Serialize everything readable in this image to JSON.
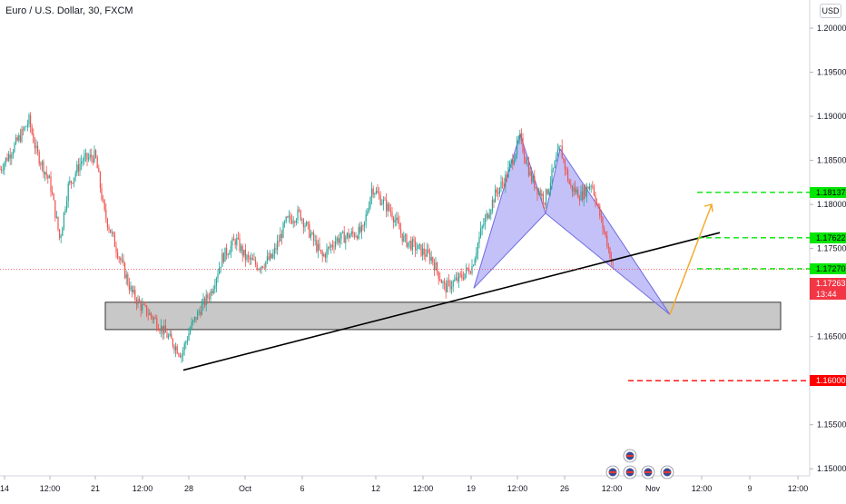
{
  "header": {
    "title": "Euro / U.S. Dollar, 30, FXCM",
    "currency_badge": "USD"
  },
  "chart_data": {
    "type": "candlestick",
    "title": "Euro / U.S. Dollar, 30, FXCM",
    "ylim": [
      1.148,
      1.204
    ],
    "y_ticks": [
      {
        "v": 1.2,
        "label": "1.20000"
      },
      {
        "v": 1.195,
        "label": "1.19500"
      },
      {
        "v": 1.19,
        "label": "1.19000"
      },
      {
        "v": 1.185,
        "label": "1.18500"
      },
      {
        "v": 1.18,
        "label": "1.18000"
      },
      {
        "v": 1.175,
        "label": "1.17500"
      },
      {
        "v": 1.165,
        "label": "1.16500"
      },
      {
        "v": 1.155,
        "label": "1.15500"
      },
      {
        "v": 1.15,
        "label": "1.15000"
      }
    ],
    "x_ticks": [
      "14",
      "12:00",
      "21",
      "12:00",
      "28",
      "Oct",
      "6",
      "12",
      "12:00",
      "19",
      "12:00",
      "26",
      "12:00",
      "Nov",
      "12:00",
      "9",
      "12:00"
    ],
    "price_path": [
      [
        0,
        1.184
      ],
      [
        12,
        1.186
      ],
      [
        24,
        1.188
      ],
      [
        32,
        1.1895
      ],
      [
        40,
        1.186
      ],
      [
        55,
        1.1825
      ],
      [
        66,
        1.176
      ],
      [
        75,
        1.182
      ],
      [
        90,
        1.185
      ],
      [
        105,
        1.1855
      ],
      [
        115,
        1.179
      ],
      [
        125,
        1.176
      ],
      [
        135,
        1.173
      ],
      [
        145,
        1.17
      ],
      [
        155,
        1.1685
      ],
      [
        170,
        1.167
      ],
      [
        185,
        1.165
      ],
      [
        200,
        1.163
      ],
      [
        210,
        1.166
      ],
      [
        220,
        1.168
      ],
      [
        232,
        1.17
      ],
      [
        245,
        1.174
      ],
      [
        260,
        1.176
      ],
      [
        270,
        1.174
      ],
      [
        285,
        1.173
      ],
      [
        300,
        1.174
      ],
      [
        315,
        1.178
      ],
      [
        330,
        1.179
      ],
      [
        345,
        1.176
      ],
      [
        355,
        1.174
      ],
      [
        370,
        1.176
      ],
      [
        385,
        1.1765
      ],
      [
        400,
        1.177
      ],
      [
        410,
        1.182
      ],
      [
        420,
        1.1805
      ],
      [
        432,
        1.179
      ],
      [
        445,
        1.176
      ],
      [
        460,
        1.175
      ],
      [
        475,
        1.174
      ],
      [
        490,
        1.1705
      ],
      [
        505,
        1.1715
      ],
      [
        520,
        1.173
      ],
      [
        530,
        1.177
      ],
      [
        545,
        1.181
      ],
      [
        557,
        1.183
      ],
      [
        573,
        1.1875
      ],
      [
        585,
        1.183
      ],
      [
        600,
        1.1805
      ],
      [
        617,
        1.1865
      ],
      [
        628,
        1.182
      ],
      [
        640,
        1.181
      ],
      [
        652,
        1.1825
      ],
      [
        660,
        1.179
      ],
      [
        668,
        1.176
      ],
      [
        676,
        1.1728
      ]
    ],
    "current_price": {
      "price_label": "1.17263",
      "countdown": "13:44",
      "value": 1.17263
    },
    "levels": [
      {
        "value": 1.18137,
        "label": "1.18137",
        "color": "#00e600",
        "kind": "target"
      },
      {
        "value": 1.17622,
        "label": "1.17622",
        "color": "#00e600",
        "kind": "target"
      },
      {
        "value": 1.1727,
        "label": "1.17270",
        "color": "#00e600",
        "kind": "target"
      },
      {
        "value": 1.16,
        "label": "1.16000",
        "color": "#ff0000",
        "kind": "stop"
      }
    ],
    "support_zone": {
      "top": 1.1689,
      "bottom": 1.1658
    },
    "trendline": [
      [
        202,
        1.1612
      ],
      [
        793,
        1.1768
      ]
    ],
    "harmonic_pattern": {
      "points": [
        [
          522,
          1.1705
        ],
        [
          573,
          1.188
        ],
        [
          601,
          1.179
        ],
        [
          617,
          1.1863
        ],
        [
          738,
          1.1675
        ]
      ],
      "fill": "#a9a7f5"
    },
    "projection_arrow": {
      "from": [
        738,
        1.1675
      ],
      "to": [
        784,
        1.18
      ],
      "color": "#f5a623"
    },
    "colors": {
      "up": "#26a69a",
      "down": "#ef5350",
      "trendline": "#000000",
      "zone": "#c8c8c8",
      "axis_text": "#131722",
      "current": "#f23645"
    }
  }
}
